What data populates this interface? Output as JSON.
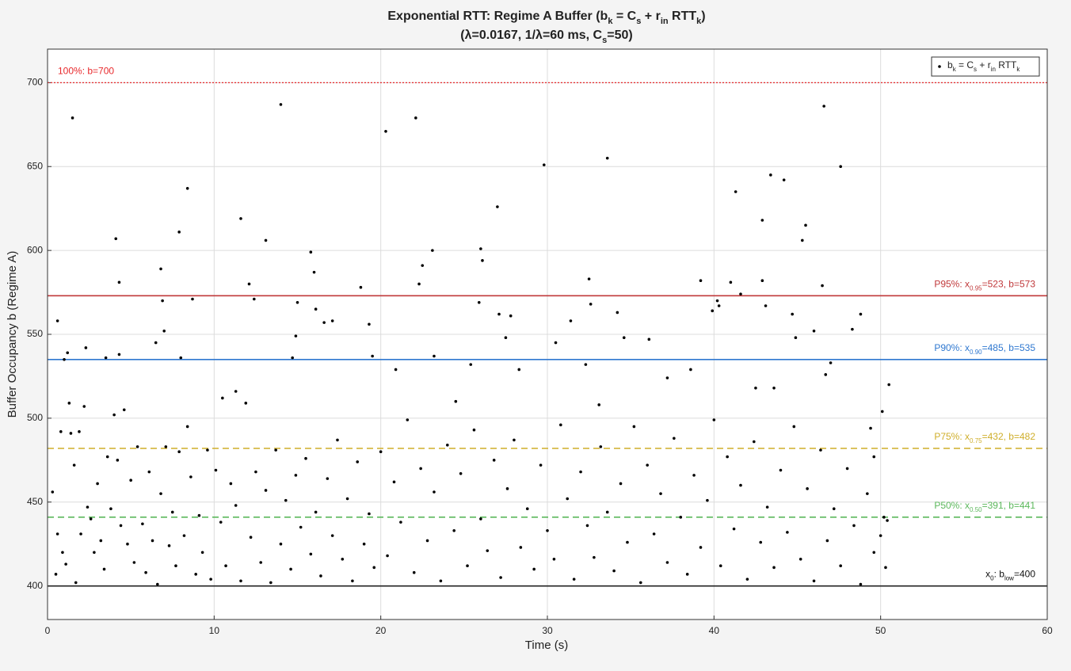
{
  "chart_data": {
    "type": "scatter",
    "title": [
      "Exponential RTT: Regime A Buffer (b",
      "k",
      " = C",
      "s",
      " + r",
      "in",
      " RTT",
      "k",
      ")"
    ],
    "subtitle": [
      "(λ=0.0167, 1/λ=60 ms, C",
      "s",
      "=50)"
    ],
    "x_label": "Time (s)",
    "y_label": "Buffer Occupancy b (Regime A)",
    "xlim": [
      0,
      60
    ],
    "xticks": [
      0,
      10,
      20,
      30,
      40,
      50,
      60
    ],
    "ylim": [
      380,
      720
    ],
    "yticks": [
      400,
      450,
      500,
      550,
      600,
      650,
      700
    ],
    "grid": true,
    "legend": "upper right",
    "lines": [
      {
        "value": 700,
        "color": "#e8282b",
        "style": "dotted",
        "label": [
          "100%: b=700"
        ],
        "label_side": "left"
      },
      {
        "value": 573,
        "color": "#c0393b",
        "style": "solid",
        "label": [
          "P95%: x",
          "0.95",
          "=523, b=573"
        ],
        "label_side": "right"
      },
      {
        "value": 535,
        "color": "#2f78d0",
        "style": "solid",
        "label": [
          "P90%: x",
          "0.90",
          "=485, b=535"
        ],
        "label_side": "right"
      },
      {
        "value": 482,
        "color": "#cfae2a",
        "style": "dashed",
        "label": [
          "P75%: x",
          "0.75",
          "=432, b=482"
        ],
        "label_side": "right"
      },
      {
        "value": 441,
        "color": "#5cb85c",
        "style": "dashed",
        "label": [
          "P50%: x",
          "0.50",
          "=391, b=441"
        ],
        "label_side": "right"
      },
      {
        "value": 400,
        "color": "#222222",
        "style": "solid",
        "label": [
          "x",
          "0",
          ": b",
          "low",
          "=400"
        ],
        "label_side": "right"
      }
    ],
    "x": [
      1.5,
      14,
      20.3,
      22.1,
      29.8,
      33.6,
      46.6,
      47.6,
      43.4,
      44.2,
      41.3,
      8.4,
      7.9,
      4.1,
      11.6,
      13.1,
      15.8,
      23.1,
      22.5,
      26,
      26.1,
      27,
      39.2,
      42.9,
      42.9,
      45.5,
      45.3,
      46.5,
      6.8,
      4.3,
      12.1,
      12.4,
      8.7,
      6.9,
      7,
      0.6,
      1.2,
      1,
      2.3,
      3.5,
      4.3,
      6.5,
      8,
      10.5,
      11.3,
      14.7,
      14.9,
      15,
      16,
      16.1,
      16.6,
      17.1,
      18.8,
      19.3,
      19.5,
      20.9,
      22.3,
      23.2,
      24.5,
      25.4,
      25.9,
      27.1,
      27.5,
      27.8,
      28.3,
      30.5,
      31.4,
      32.3,
      32.5,
      32.6,
      33.1,
      34.2,
      34.6,
      36.1,
      37.2,
      38.6,
      39.9,
      40.2,
      40.3,
      41,
      41.6,
      42.5,
      43.1,
      43.6,
      44.7,
      44.9,
      46,
      46.7,
      47,
      48.3,
      48.8,
      50.1,
      50.5,
      49.6,
      50.2,
      50.3,
      50.4,
      49.4,
      0.3,
      0.5,
      0.6,
      0.8,
      0.9,
      1.1,
      1.3,
      1.4,
      1.6,
      1.7,
      1.9,
      2.0,
      2.2,
      2.4,
      2.6,
      2.8,
      3.0,
      3.2,
      3.4,
      3.6,
      3.8,
      4.0,
      4.2,
      4.4,
      4.6,
      4.8,
      5.0,
      5.2,
      5.4,
      5.7,
      5.9,
      6.1,
      6.3,
      6.6,
      6.8,
      7.1,
      7.3,
      7.5,
      7.7,
      7.9,
      8.2,
      8.4,
      8.6,
      8.9,
      9.1,
      9.3,
      9.6,
      9.8,
      10.1,
      10.4,
      10.7,
      11.0,
      11.3,
      11.6,
      11.9,
      12.2,
      12.5,
      12.8,
      13.1,
      13.4,
      13.7,
      14.0,
      14.3,
      14.6,
      14.9,
      15.2,
      15.5,
      15.8,
      16.1,
      16.4,
      16.8,
      17.1,
      17.4,
      17.7,
      18.0,
      18.3,
      18.6,
      19.0,
      19.3,
      19.6,
      20.0,
      20.4,
      20.8,
      21.2,
      21.6,
      22.0,
      22.4,
      22.8,
      23.2,
      23.6,
      24.0,
      24.4,
      24.8,
      25.2,
      25.6,
      26.0,
      26.4,
      26.8,
      27.2,
      27.6,
      28.0,
      28.4,
      28.8,
      29.2,
      29.6,
      30.0,
      30.4,
      30.8,
      31.2,
      31.6,
      32.0,
      32.4,
      32.8,
      33.2,
      33.6,
      34.0,
      34.4,
      34.8,
      35.2,
      35.6,
      36.0,
      36.4,
      36.8,
      37.2,
      37.6,
      38.0,
      38.4,
      38.8,
      39.2,
      39.6,
      40.0,
      40.4,
      40.8,
      41.2,
      41.6,
      42.0,
      42.4,
      42.8,
      43.2,
      43.6,
      44.0,
      44.4,
      44.8,
      45.2,
      45.6,
      46.0,
      46.4,
      46.8,
      47.2,
      47.6,
      48.0,
      48.4,
      48.8,
      49.2,
      49.6,
      50.0
    ],
    "series": [
      {
        "name": [
          "b",
          "k",
          " = C",
          "s",
          " + r",
          "in",
          " RTT",
          "k"
        ],
        "color": "#000000",
        "values": [
          679,
          687,
          671,
          679,
          651,
          655,
          686,
          650,
          645,
          642,
          635,
          637,
          611,
          607,
          619,
          606,
          599,
          600,
          591,
          601,
          594,
          626,
          582,
          618,
          582,
          615,
          606,
          579,
          589,
          581,
          580,
          571,
          571,
          570,
          552,
          558,
          539,
          535,
          542,
          536,
          538,
          545,
          536,
          512,
          516,
          536,
          549,
          569,
          587,
          565,
          557,
          558,
          578,
          556,
          537,
          529,
          580,
          537,
          510,
          532,
          569,
          562,
          548,
          561,
          529,
          545,
          558,
          532,
          583,
          568,
          508,
          563,
          548,
          547,
          524,
          529,
          564,
          570,
          567,
          581,
          574,
          518,
          567,
          518,
          562,
          548,
          552,
          526,
          533,
          553,
          562,
          504,
          520,
          477,
          441,
          411,
          439,
          494,
          456,
          407,
          431,
          492,
          420,
          413,
          509,
          491,
          472,
          402,
          492,
          431,
          507,
          447,
          440,
          420,
          461,
          427,
          410,
          477,
          446,
          502,
          475,
          436,
          505,
          425,
          463,
          414,
          483,
          437,
          408,
          468,
          427,
          401,
          455,
          483,
          424,
          444,
          412,
          480,
          430,
          495,
          465,
          407,
          442,
          420,
          481,
          404,
          469,
          438,
          412,
          461,
          448,
          403,
          509,
          429,
          468,
          414,
          457,
          402,
          481,
          425,
          451,
          410,
          466,
          435,
          476,
          419,
          444,
          406,
          464,
          430,
          487,
          416,
          452,
          403,
          474,
          425,
          443,
          411,
          480,
          418,
          462,
          438,
          499,
          408,
          470,
          427,
          456,
          403,
          484,
          433,
          467,
          412,
          493,
          440,
          421,
          475,
          405,
          458,
          487,
          423,
          446,
          410,
          472,
          433,
          416,
          496,
          452,
          404,
          468,
          436,
          417,
          483,
          444,
          409,
          461,
          426,
          495,
          402,
          472,
          431,
          455,
          414,
          488,
          441,
          407,
          466,
          423,
          451,
          499,
          412,
          477,
          434,
          460,
          404,
          486,
          426,
          447,
          411,
          469,
          432,
          495,
          416,
          458,
          403,
          481,
          427,
          446,
          412,
          470,
          436,
          401,
          455,
          420,
          430
        ]
      }
    ]
  }
}
